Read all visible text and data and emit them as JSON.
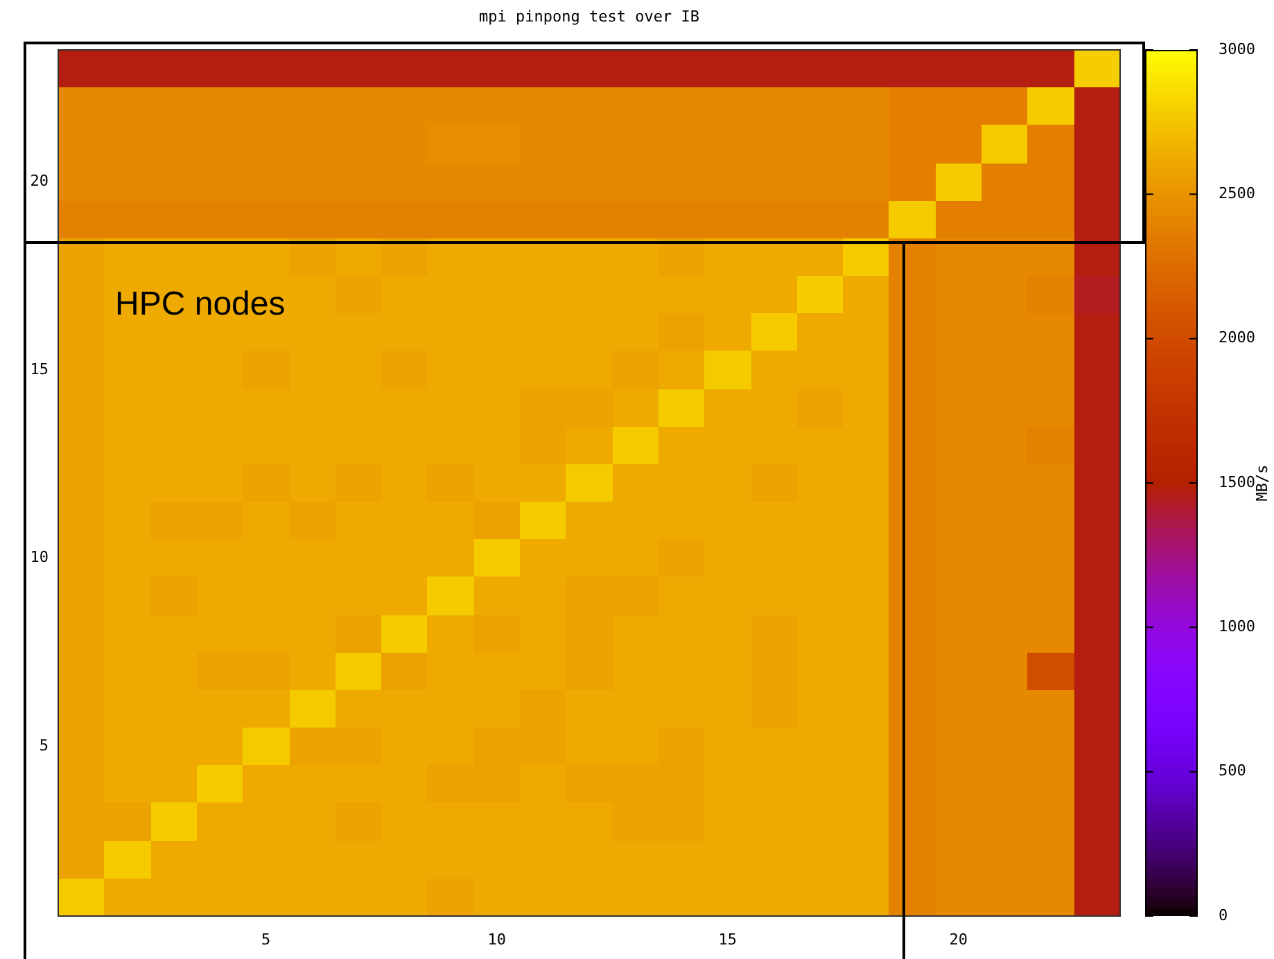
{
  "chart_data": {
    "type": "heatmap",
    "title": "mpi pinpong test over IB",
    "clabel": "MB/s",
    "annotations": [
      "HPC nodes"
    ],
    "categories": [
      null,
      null,
      null,
      null,
      "5",
      null,
      null,
      null,
      null,
      "10",
      null,
      null,
      null,
      null,
      "15",
      null,
      null,
      null,
      null,
      "20",
      null,
      null,
      null
    ],
    "y_categories": [
      null,
      null,
      null,
      "20",
      null,
      null,
      null,
      null,
      "15",
      null,
      null,
      null,
      null,
      "10",
      null,
      null,
      null,
      null,
      "5",
      null,
      null,
      null,
      null
    ],
    "clim": [
      0,
      3000
    ],
    "cticks": [
      0,
      500,
      1000,
      1500,
      2000,
      2500,
      3000
    ],
    "cells": [
      [
        1470,
        1470,
        1470,
        1470,
        1470,
        1470,
        1470,
        1470,
        1470,
        1470,
        1470,
        1470,
        1470,
        1470,
        1470,
        1470,
        1470,
        1470,
        1470,
        1470,
        1470,
        1470,
        2790
      ],
      [
        2430,
        2430,
        2430,
        2430,
        2430,
        2430,
        2430,
        2430,
        2430,
        2430,
        2430,
        2430,
        2430,
        2430,
        2430,
        2430,
        2430,
        2430,
        2370,
        2370,
        2370,
        2780,
        1470
      ],
      [
        2430,
        2430,
        2430,
        2430,
        2430,
        2430,
        2430,
        2430,
        2460,
        2460,
        2430,
        2430,
        2430,
        2430,
        2430,
        2430,
        2430,
        2430,
        2370,
        2370,
        2780,
        2370,
        1470
      ],
      [
        2430,
        2430,
        2430,
        2430,
        2430,
        2430,
        2430,
        2430,
        2430,
        2430,
        2430,
        2430,
        2430,
        2430,
        2430,
        2430,
        2430,
        2430,
        2370,
        2780,
        2370,
        2370,
        1470
      ],
      [
        2390,
        2390,
        2390,
        2390,
        2390,
        2390,
        2390,
        2390,
        2390,
        2390,
        2390,
        2390,
        2390,
        2390,
        2390,
        2390,
        2390,
        2390,
        2780,
        2370,
        2370,
        2370,
        1470
      ],
      [
        2580,
        2620,
        2620,
        2620,
        2620,
        2580,
        2620,
        2580,
        2620,
        2620,
        2620,
        2620,
        2620,
        2580,
        2620,
        2620,
        2620,
        2780,
        2390,
        2430,
        2430,
        2430,
        1470
      ],
      [
        2580,
        2620,
        2620,
        2620,
        2620,
        2620,
        2580,
        2620,
        2620,
        2620,
        2620,
        2620,
        2620,
        2620,
        2620,
        2620,
        2780,
        2620,
        2390,
        2430,
        2430,
        2390,
        1440
      ],
      [
        2580,
        2620,
        2620,
        2620,
        2620,
        2620,
        2620,
        2620,
        2620,
        2620,
        2620,
        2620,
        2620,
        2580,
        2620,
        2780,
        2620,
        2620,
        2390,
        2430,
        2430,
        2430,
        1470
      ],
      [
        2580,
        2620,
        2620,
        2620,
        2580,
        2620,
        2620,
        2580,
        2620,
        2620,
        2620,
        2620,
        2580,
        2620,
        2780,
        2620,
        2620,
        2620,
        2390,
        2430,
        2430,
        2430,
        1470
      ],
      [
        2580,
        2620,
        2620,
        2620,
        2620,
        2620,
        2620,
        2620,
        2620,
        2620,
        2580,
        2580,
        2620,
        2780,
        2620,
        2620,
        2580,
        2620,
        2390,
        2430,
        2430,
        2430,
        1470
      ],
      [
        2580,
        2620,
        2620,
        2620,
        2620,
        2620,
        2620,
        2620,
        2620,
        2620,
        2580,
        2620,
        2780,
        2620,
        2620,
        2620,
        2620,
        2620,
        2390,
        2430,
        2430,
        2390,
        1470
      ],
      [
        2580,
        2620,
        2620,
        2620,
        2580,
        2620,
        2580,
        2620,
        2580,
        2620,
        2620,
        2780,
        2620,
        2620,
        2620,
        2580,
        2620,
        2620,
        2390,
        2430,
        2430,
        2430,
        1470
      ],
      [
        2580,
        2620,
        2580,
        2580,
        2620,
        2580,
        2620,
        2620,
        2620,
        2580,
        2780,
        2620,
        2620,
        2620,
        2620,
        2620,
        2620,
        2620,
        2390,
        2430,
        2430,
        2430,
        1470
      ],
      [
        2580,
        2620,
        2620,
        2620,
        2620,
        2620,
        2620,
        2620,
        2620,
        2780,
        2620,
        2620,
        2620,
        2580,
        2620,
        2620,
        2620,
        2620,
        2390,
        2430,
        2430,
        2430,
        1470
      ],
      [
        2580,
        2620,
        2580,
        2620,
        2620,
        2620,
        2620,
        2620,
        2780,
        2620,
        2620,
        2580,
        2580,
        2620,
        2620,
        2620,
        2620,
        2620,
        2390,
        2430,
        2430,
        2430,
        1470
      ],
      [
        2580,
        2620,
        2620,
        2620,
        2620,
        2620,
        2580,
        2780,
        2620,
        2580,
        2620,
        2580,
        2620,
        2620,
        2620,
        2580,
        2620,
        2620,
        2390,
        2430,
        2430,
        2430,
        1470
      ],
      [
        2580,
        2620,
        2620,
        2580,
        2580,
        2620,
        2780,
        2580,
        2620,
        2620,
        2620,
        2580,
        2620,
        2620,
        2620,
        2580,
        2620,
        2620,
        2390,
        2430,
        2430,
        2020,
        1470
      ],
      [
        2580,
        2620,
        2620,
        2620,
        2620,
        2780,
        2620,
        2620,
        2620,
        2620,
        2580,
        2620,
        2620,
        2620,
        2620,
        2580,
        2620,
        2620,
        2390,
        2430,
        2430,
        2430,
        1470
      ],
      [
        2580,
        2620,
        2620,
        2620,
        2780,
        2580,
        2580,
        2620,
        2620,
        2580,
        2580,
        2620,
        2620,
        2580,
        2620,
        2620,
        2620,
        2620,
        2390,
        2430,
        2430,
        2430,
        1470
      ],
      [
        2580,
        2620,
        2620,
        2780,
        2620,
        2620,
        2620,
        2620,
        2580,
        2580,
        2620,
        2580,
        2580,
        2580,
        2620,
        2620,
        2620,
        2620,
        2390,
        2430,
        2430,
        2430,
        1470
      ],
      [
        2580,
        2580,
        2780,
        2620,
        2620,
        2620,
        2580,
        2620,
        2620,
        2620,
        2620,
        2620,
        2580,
        2580,
        2620,
        2620,
        2620,
        2620,
        2390,
        2430,
        2430,
        2430,
        1470
      ],
      [
        2580,
        2780,
        2620,
        2620,
        2620,
        2620,
        2620,
        2620,
        2620,
        2620,
        2620,
        2620,
        2620,
        2620,
        2620,
        2620,
        2620,
        2620,
        2390,
        2430,
        2430,
        2430,
        1470
      ],
      [
        2780,
        2620,
        2620,
        2620,
        2620,
        2620,
        2620,
        2620,
        2580,
        2620,
        2620,
        2620,
        2620,
        2620,
        2620,
        2620,
        2620,
        2620,
        2390,
        2430,
        2430,
        2430,
        1470
      ]
    ]
  }
}
